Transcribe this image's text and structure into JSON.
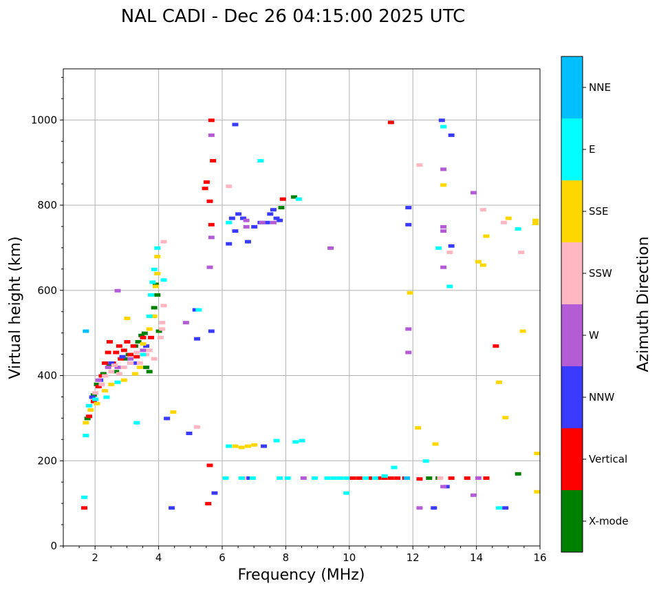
{
  "chart_data": {
    "type": "scatter",
    "title": "NAL CADI - Dec 26 04:15:00 2025 UTC",
    "xlabel": "Frequency (MHz)",
    "ylabel": "Virtual height (km)",
    "xlim": [
      1,
      16
    ],
    "ylim": [
      0,
      1120
    ],
    "xticks": [
      2,
      4,
      6,
      8,
      10,
      12,
      14,
      16
    ],
    "yticks": [
      0,
      200,
      400,
      600,
      800,
      1000
    ],
    "grid": true,
    "colorbar": {
      "label": "Azimuth Direction",
      "categories": [
        {
          "name": "X-mode",
          "color": "#008000"
        },
        {
          "name": "Vertical",
          "color": "#ff0000"
        },
        {
          "name": "NNW",
          "color": "#3a3aff"
        },
        {
          "name": "W",
          "color": "#b45bd6"
        },
        {
          "name": "SSW",
          "color": "#ffb6c1"
        },
        {
          "name": "SSE",
          "color": "#ffd700"
        },
        {
          "name": "E",
          "color": "#00ffff"
        },
        {
          "name": "NNE",
          "color": "#00bfff"
        }
      ]
    },
    "series": [
      {
        "name": "X-mode",
        "points": [
          [
            1.75,
            300
          ],
          [
            1.95,
            355
          ],
          [
            2.05,
            380
          ],
          [
            2.25,
            405
          ],
          [
            2.45,
            425
          ],
          [
            2.65,
            410
          ],
          [
            2.95,
            440
          ],
          [
            3.05,
            450
          ],
          [
            3.25,
            470
          ],
          [
            3.35,
            480
          ],
          [
            3.45,
            495
          ],
          [
            3.55,
            500
          ],
          [
            3.6,
            420
          ],
          [
            3.7,
            410
          ],
          [
            3.8,
            540
          ],
          [
            3.85,
            560
          ],
          [
            3.9,
            615
          ],
          [
            3.95,
            590
          ],
          [
            4.0,
            505
          ],
          [
            8.25,
            820
          ],
          [
            7.85,
            795
          ],
          [
            12.5,
            160
          ],
          [
            15.3,
            170
          ],
          [
            12.8,
            160
          ]
        ]
      },
      {
        "name": "Vertical",
        "points": [
          [
            1.65,
            90
          ],
          [
            1.8,
            305
          ],
          [
            1.95,
            340
          ],
          [
            2.1,
            375
          ],
          [
            2.2,
            400
          ],
          [
            2.3,
            430
          ],
          [
            2.4,
            455
          ],
          [
            2.45,
            480
          ],
          [
            2.55,
            430
          ],
          [
            2.65,
            455
          ],
          [
            2.75,
            470
          ],
          [
            2.8,
            440
          ],
          [
            2.9,
            460
          ],
          [
            3.0,
            480
          ],
          [
            3.1,
            450
          ],
          [
            3.2,
            470
          ],
          [
            3.3,
            445
          ],
          [
            3.5,
            490
          ],
          [
            3.75,
            490
          ],
          [
            5.65,
            1000
          ],
          [
            5.6,
            810
          ],
          [
            5.7,
            905
          ],
          [
            5.5,
            855
          ],
          [
            5.45,
            840
          ],
          [
            5.55,
            100
          ],
          [
            5.6,
            190
          ],
          [
            5.65,
            755
          ],
          [
            7.9,
            815
          ],
          [
            10.1,
            160
          ],
          [
            10.3,
            160
          ],
          [
            10.5,
            160
          ],
          [
            10.7,
            160
          ],
          [
            10.9,
            160
          ],
          [
            11.1,
            160
          ],
          [
            11.3,
            160
          ],
          [
            11.5,
            160
          ],
          [
            11.75,
            160
          ],
          [
            11.3,
            995
          ],
          [
            12.2,
            158
          ],
          [
            13.2,
            160
          ],
          [
            13.7,
            160
          ],
          [
            14.3,
            160
          ],
          [
            14.6,
            470
          ]
        ]
      },
      {
        "name": "NNW",
        "points": [
          [
            1.9,
            350
          ],
          [
            2.15,
            390
          ],
          [
            2.5,
            430
          ],
          [
            2.85,
            445
          ],
          [
            3.1,
            430
          ],
          [
            3.3,
            430
          ],
          [
            3.6,
            470
          ],
          [
            4.25,
            300
          ],
          [
            4.4,
            90
          ],
          [
            4.95,
            265
          ],
          [
            5.15,
            555
          ],
          [
            5.2,
            487
          ],
          [
            5.65,
            505
          ],
          [
            5.75,
            125
          ],
          [
            6.2,
            710
          ],
          [
            6.3,
            770
          ],
          [
            6.4,
            740
          ],
          [
            6.5,
            780
          ],
          [
            6.65,
            770
          ],
          [
            6.8,
            715
          ],
          [
            7.0,
            750
          ],
          [
            7.2,
            760
          ],
          [
            7.4,
            760
          ],
          [
            7.5,
            780
          ],
          [
            7.6,
            790
          ],
          [
            7.7,
            770
          ],
          [
            7.8,
            765
          ],
          [
            6.4,
            990
          ],
          [
            6.85,
            160
          ],
          [
            7.3,
            235
          ],
          [
            11.85,
            795
          ],
          [
            11.85,
            755
          ],
          [
            12.65,
            90
          ],
          [
            12.9,
            1000
          ],
          [
            13.2,
            965
          ],
          [
            13.2,
            705
          ],
          [
            14.9,
            90
          ],
          [
            13.05,
            140
          ]
        ]
      },
      {
        "name": "W",
        "points": [
          [
            2.1,
            390
          ],
          [
            2.4,
            420
          ],
          [
            2.7,
            420
          ],
          [
            2.7,
            600
          ],
          [
            3.1,
            440
          ],
          [
            3.5,
            460
          ],
          [
            5.6,
            655
          ],
          [
            5.65,
            965
          ],
          [
            5.65,
            725
          ],
          [
            4.85,
            525
          ],
          [
            6.75,
            765
          ],
          [
            6.75,
            750
          ],
          [
            7.25,
            760
          ],
          [
            7.6,
            760
          ],
          [
            8.55,
            160
          ],
          [
            9.4,
            700
          ],
          [
            11.85,
            510
          ],
          [
            11.85,
            455
          ],
          [
            12.95,
            885
          ],
          [
            12.95,
            750
          ],
          [
            12.95,
            740
          ],
          [
            12.95,
            655
          ],
          [
            13.9,
            830
          ],
          [
            13.9,
            120
          ],
          [
            12.2,
            90
          ],
          [
            14.05,
            160
          ],
          [
            12.95,
            140
          ]
        ]
      },
      {
        "name": "SSW",
        "points": [
          [
            2.0,
            360
          ],
          [
            2.2,
            380
          ],
          [
            2.3,
            400
          ],
          [
            2.5,
            410
          ],
          [
            2.6,
            425
          ],
          [
            2.75,
            405
          ],
          [
            2.9,
            420
          ],
          [
            3.1,
            430
          ],
          [
            3.3,
            455
          ],
          [
            3.4,
            430
          ],
          [
            3.6,
            450
          ],
          [
            3.7,
            460
          ],
          [
            3.85,
            440
          ],
          [
            4.05,
            490
          ],
          [
            4.1,
            510
          ],
          [
            4.1,
            525
          ],
          [
            4.15,
            565
          ],
          [
            4.15,
            715
          ],
          [
            5.2,
            280
          ],
          [
            6.2,
            845
          ],
          [
            6.65,
            160
          ],
          [
            12.2,
            895
          ],
          [
            13.15,
            690
          ],
          [
            14.2,
            790
          ],
          [
            14.85,
            760
          ],
          [
            15.4,
            690
          ],
          [
            12.85,
            160
          ]
        ]
      },
      {
        "name": "SSE",
        "points": [
          [
            1.7,
            290
          ],
          [
            1.85,
            320
          ],
          [
            2.05,
            335
          ],
          [
            2.3,
            365
          ],
          [
            2.5,
            380
          ],
          [
            2.9,
            390
          ],
          [
            3.0,
            535
          ],
          [
            3.25,
            405
          ],
          [
            3.4,
            420
          ],
          [
            3.5,
            475
          ],
          [
            3.7,
            510
          ],
          [
            3.85,
            540
          ],
          [
            3.9,
            610
          ],
          [
            3.95,
            640
          ],
          [
            3.95,
            680
          ],
          [
            4.45,
            315
          ],
          [
            6.4,
            235
          ],
          [
            6.6,
            232
          ],
          [
            6.8,
            235
          ],
          [
            7.0,
            238
          ],
          [
            11.9,
            595
          ],
          [
            12.15,
            278
          ],
          [
            12.7,
            240
          ],
          [
            12.95,
            848
          ],
          [
            14.05,
            668
          ],
          [
            14.2,
            660
          ],
          [
            14.3,
            728
          ],
          [
            14.7,
            385
          ],
          [
            14.9,
            302
          ],
          [
            15.0,
            770
          ],
          [
            15.45,
            505
          ],
          [
            15.9,
            218
          ],
          [
            15.9,
            128
          ],
          [
            15.85,
            765
          ],
          [
            15.85,
            758
          ]
        ]
      },
      {
        "name": "E",
        "points": [
          [
            1.65,
            115
          ],
          [
            1.7,
            260
          ],
          [
            1.8,
            330
          ],
          [
            2.0,
            345
          ],
          [
            2.35,
            350
          ],
          [
            2.7,
            385
          ],
          [
            3.3,
            290
          ],
          [
            3.5,
            450
          ],
          [
            3.7,
            540
          ],
          [
            3.75,
            590
          ],
          [
            3.8,
            620
          ],
          [
            3.85,
            650
          ],
          [
            3.95,
            700
          ],
          [
            4.15,
            625
          ],
          [
            5.25,
            555
          ],
          [
            6.1,
            160
          ],
          [
            6.2,
            235
          ],
          [
            6.2,
            760
          ],
          [
            6.6,
            160
          ],
          [
            6.95,
            160
          ],
          [
            7.2,
            905
          ],
          [
            7.7,
            248
          ],
          [
            7.8,
            160
          ],
          [
            8.05,
            160
          ],
          [
            8.3,
            245
          ],
          [
            8.5,
            248
          ],
          [
            8.4,
            815
          ],
          [
            8.9,
            160
          ],
          [
            9.3,
            160
          ],
          [
            9.5,
            160
          ],
          [
            9.7,
            160
          ],
          [
            9.9,
            125
          ],
          [
            9.9,
            160
          ],
          [
            10.5,
            160
          ],
          [
            10.8,
            160
          ],
          [
            11.1,
            165
          ],
          [
            11.4,
            185
          ],
          [
            12.4,
            200
          ],
          [
            12.8,
            700
          ],
          [
            12.95,
            985
          ],
          [
            13.15,
            610
          ],
          [
            14.7,
            90
          ],
          [
            15.3,
            745
          ]
        ]
      },
      {
        "name": "NNE",
        "points": [
          [
            1.7,
            505
          ],
          [
            11.8,
            160
          ]
        ]
      }
    ]
  }
}
